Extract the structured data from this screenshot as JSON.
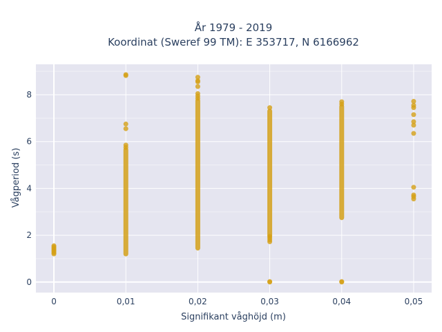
{
  "chart_data": {
    "type": "scatter",
    "title": [
      "År 1979 - 2019",
      "Koordinat (Sweref 99 TM): E 353717, N 6166962"
    ],
    "xlabel": "Signifikant våghöjd (m)",
    "ylabel": "Vågperiod (s)",
    "xlim": [
      -0.0025,
      0.0525
    ],
    "ylim": [
      -0.45,
      9.3
    ],
    "x_ticks": [
      0,
      0.01,
      0.02,
      0.03,
      0.04,
      0.05
    ],
    "x_tick_labels": [
      "0",
      "0,01",
      "0,02",
      "0,03",
      "0,04",
      "0,05"
    ],
    "y_ticks": [
      0,
      2,
      4,
      6,
      8
    ],
    "y_tick_labels": [
      "0",
      "2",
      "4",
      "6",
      "8"
    ],
    "grid": true,
    "background": "#e5e5f0",
    "marker_color": "#d4a017",
    "legend": "none",
    "series": [
      {
        "x": 0,
        "y": [
          1.2,
          1.25,
          1.3,
          1.35,
          1.4,
          1.45,
          1.5,
          1.55
        ]
      },
      {
        "x": 0.01,
        "y_ranges": [
          [
            1.2,
            5.65
          ]
        ],
        "y": [
          5.75,
          5.85,
          6.55,
          6.75,
          8.82,
          8.86
        ]
      },
      {
        "x": 0.02,
        "y_ranges": [
          [
            1.45,
            7.75
          ]
        ],
        "y": [
          7.85,
          7.95,
          8.05,
          8.35,
          8.55,
          8.6,
          8.75
        ]
      },
      {
        "x": 0.03,
        "y_ranges": [
          [
            2.0,
            7.3
          ]
        ],
        "y": [
          0.0,
          0.02,
          1.72,
          1.8,
          1.88,
          1.95,
          7.45
        ]
      },
      {
        "x": 0.04,
        "y_ranges": [
          [
            2.75,
            7.5
          ]
        ],
        "y": [
          0.0,
          0.02,
          7.6,
          7.7
        ]
      },
      {
        "x": 0.05,
        "y": [
          3.55,
          3.65,
          3.72,
          4.05,
          6.35,
          6.7,
          6.85,
          7.15,
          7.45,
          7.55,
          7.72
        ]
      }
    ]
  }
}
